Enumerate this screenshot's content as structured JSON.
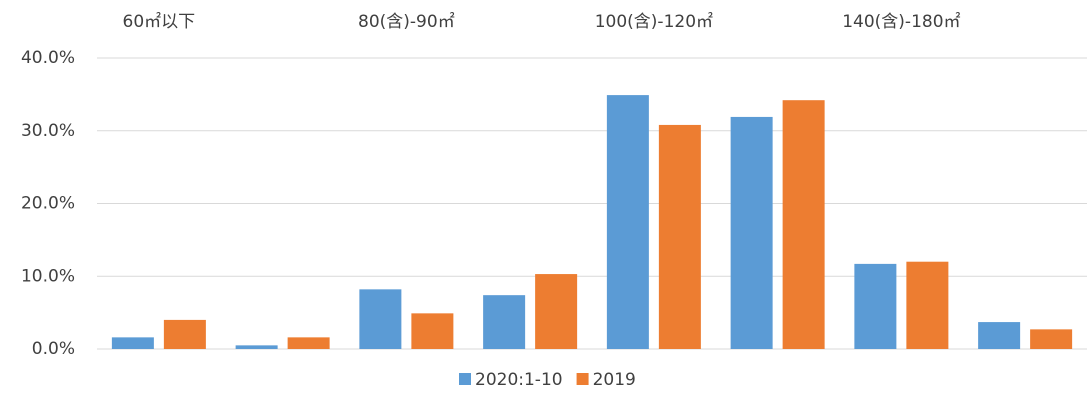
{
  "chart_data": {
    "type": "bar",
    "categories": [
      "60㎡以下",
      null,
      "80(含)-90㎡",
      null,
      "100(含)-120㎡",
      null,
      "140(含)-180㎡",
      null
    ],
    "series": [
      {
        "name": "2020:1-10",
        "color": "#5b9bd5",
        "values": [
          1.6,
          0.5,
          8.2,
          7.4,
          34.9,
          31.9,
          11.7,
          3.7
        ]
      },
      {
        "name": "2019",
        "color": "#ed7d31",
        "values": [
          4.0,
          1.6,
          4.9,
          10.3,
          30.8,
          34.2,
          12.0,
          2.7
        ]
      }
    ],
    "ylim": [
      0,
      40
    ],
    "yticks": [
      {
        "value": 0,
        "label": "0.0%"
      },
      {
        "value": 10,
        "label": "10.0%"
      },
      {
        "value": 20,
        "label": "20.0%"
      },
      {
        "value": 30,
        "label": "30.0%"
      },
      {
        "value": 40,
        "label": "40.0%"
      }
    ],
    "grid": true,
    "legend": "bottom"
  }
}
